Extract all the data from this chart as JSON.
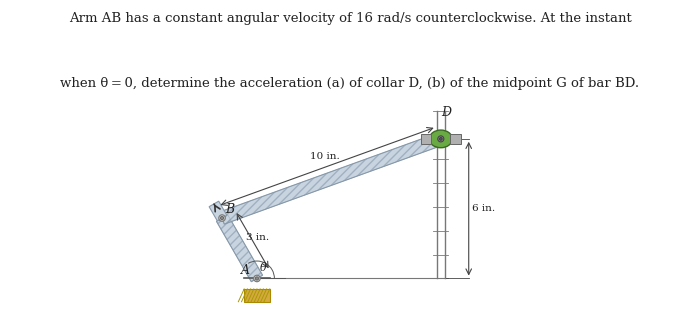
{
  "title_line1": "Arm AB has a constant angular velocity of 16 rad/s counterclockwise. At the instant",
  "title_line2": "when θ = 0, determine the acceleration (a) of collar D, (b) of the midpoint G of bar BD.",
  "bg_color": "#ffffff",
  "fig_width": 7.0,
  "fig_height": 3.25,
  "dpi": 100,
  "arm_AB_length_label": "3 in.",
  "bar_BD_mid_label": "10 in.",
  "vertical_label": "6 in.",
  "theta_label": "θ",
  "label_A": "A",
  "label_B": "B",
  "label_D": "D",
  "bar_fill": "#c8d4e0",
  "bar_edge": "#8899aa",
  "bar_hatch_color": "#aabbcc",
  "collar_green": "#6aaa44",
  "collar_metal": "#b0b0b0",
  "ground_fill": "#d4aa40",
  "ground_edge": "#aa8800",
  "pin_fill": "#cccccc",
  "pin_edge": "#777777",
  "dim_color": "#444444",
  "text_color": "#222222",
  "font_size_title": 9.5,
  "font_size_label": 8.0,
  "font_size_dim": 7.5
}
